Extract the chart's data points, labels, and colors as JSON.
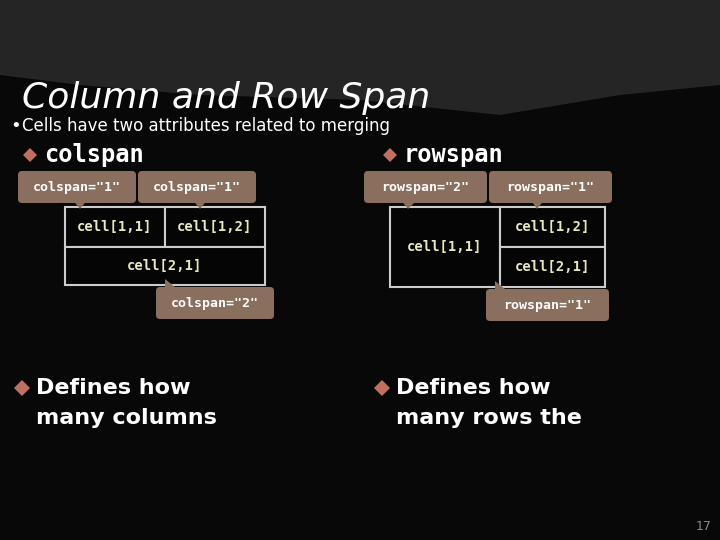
{
  "title": "Column and Row Span",
  "bullet": "Cells have two attributes related to merging",
  "bg_color": "#080808",
  "title_color": "#ffffff",
  "text_color": "#ffffff",
  "diamond_color": "#c07060",
  "tag_bg": "#8B6F5E",
  "tag_text": "#ffffff",
  "cell_text_color": "#e8e8c0",
  "slide_num": "17",
  "top_wave_color": "#252525"
}
